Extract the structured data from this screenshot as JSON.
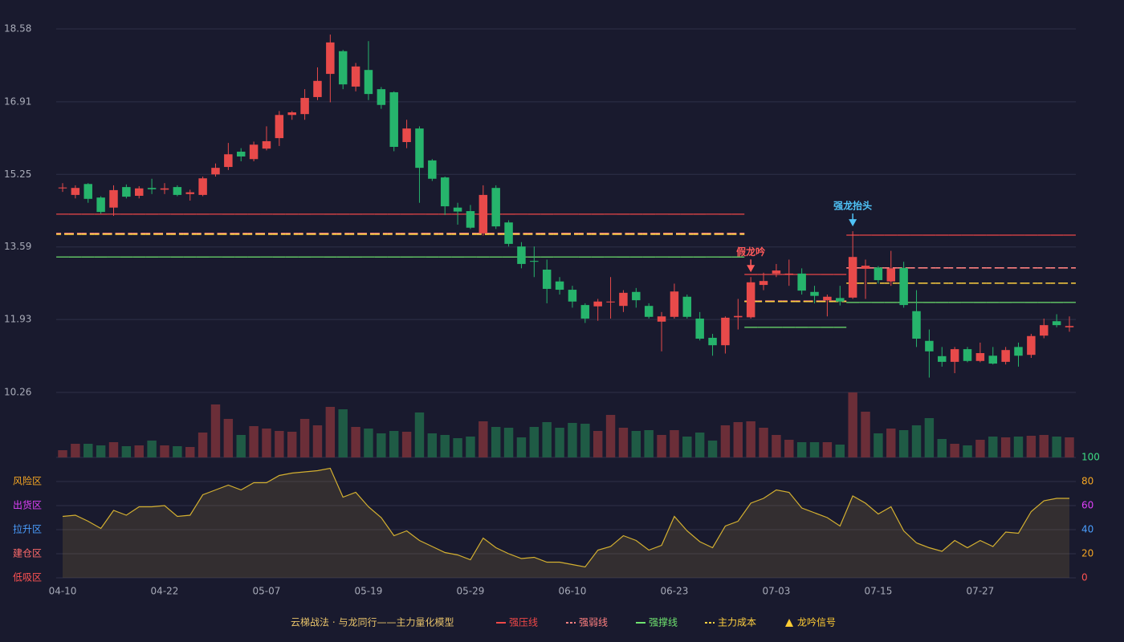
{
  "chart_data": {
    "type": "candlestick",
    "title": "云梯战法 · 与龙同行——主力量化模型",
    "categories": [
      "04-10",
      null,
      null,
      null,
      null,
      null,
      null,
      null,
      "04-22",
      null,
      null,
      null,
      null,
      null,
      null,
      null,
      "05-07",
      null,
      null,
      null,
      null,
      null,
      null,
      null,
      "05-19",
      null,
      null,
      null,
      null,
      null,
      null,
      null,
      "05-29",
      null,
      null,
      null,
      null,
      null,
      null,
      null,
      "06-10",
      null,
      null,
      null,
      null,
      null,
      null,
      null,
      "06-23",
      null,
      null,
      null,
      null,
      null,
      null,
      null,
      "07-03",
      null,
      null,
      null,
      null,
      null,
      null,
      null,
      "07-15",
      null,
      null,
      null,
      null,
      null,
      null,
      null,
      "07-27",
      null,
      null,
      null,
      null,
      null,
      null,
      null
    ],
    "open": [
      14.93,
      14.78,
      15.03,
      14.72,
      14.49,
      14.96,
      14.76,
      14.94,
      14.9,
      14.96,
      14.8,
      14.78,
      15.25,
      15.42,
      15.77,
      15.6,
      15.84,
      16.08,
      16.61,
      16.63,
      17.02,
      17.55,
      18.07,
      17.26,
      17.64,
      17.2,
      17.13,
      15.99,
      16.3,
      15.57,
      15.18,
      14.49,
      14.41,
      13.9,
      14.94,
      14.15,
      13.6,
      13.27,
      13.07,
      12.8,
      12.61,
      12.26,
      12.23,
      12.32,
      12.24,
      12.56,
      12.24,
      11.88,
      11.99,
      12.45,
      11.95,
      11.51,
      11.34,
      11.98,
      11.98,
      12.72,
      12.98,
      12.96,
      12.98,
      12.56,
      12.37,
      12.42,
      12.43,
      13.09,
      13.12,
      12.8,
      13.11,
      12.12,
      11.44,
      11.09,
      10.96,
      11.25,
      10.98,
      11.1,
      10.96,
      11.3,
      11.12,
      11.56,
      11.89,
      11.75
    ],
    "high": [
      15.05,
      15.0,
      15.05,
      14.75,
      15.0,
      15.02,
      14.98,
      15.15,
      15.05,
      15.0,
      14.9,
      15.2,
      15.5,
      15.97,
      15.85,
      16.0,
      16.35,
      16.7,
      16.7,
      17.2,
      17.7,
      18.45,
      18.1,
      17.8,
      18.3,
      17.25,
      17.15,
      16.5,
      16.35,
      15.6,
      15.2,
      14.6,
      14.55,
      15.0,
      15.0,
      14.2,
      13.7,
      13.6,
      13.3,
      12.9,
      12.7,
      12.3,
      12.4,
      12.9,
      12.6,
      12.65,
      12.3,
      12.1,
      12.75,
      12.5,
      12.1,
      11.6,
      12.0,
      12.4,
      12.9,
      13.0,
      13.2,
      13.3,
      13.1,
      12.7,
      12.5,
      12.7,
      13.95,
      13.3,
      13.15,
      13.5,
      13.25,
      12.6,
      11.7,
      11.3,
      11.3,
      11.3,
      11.4,
      11.3,
      11.3,
      11.4,
      11.6,
      11.95,
      12.05,
      12.0
    ],
    "low": [
      14.85,
      14.7,
      14.6,
      14.35,
      14.3,
      14.7,
      14.7,
      14.8,
      14.8,
      14.75,
      14.65,
      14.75,
      15.2,
      15.35,
      15.55,
      15.55,
      15.8,
      15.9,
      16.5,
      16.5,
      16.95,
      16.9,
      17.2,
      17.15,
      16.95,
      16.75,
      15.78,
      15.85,
      14.6,
      15.1,
      14.32,
      14.1,
      14.0,
      13.85,
      14.0,
      13.6,
      13.1,
      12.9,
      12.3,
      12.5,
      12.2,
      11.85,
      11.9,
      11.95,
      12.1,
      12.2,
      11.95,
      11.2,
      11.95,
      11.95,
      11.45,
      11.1,
      11.15,
      11.7,
      11.95,
      12.6,
      12.9,
      12.7,
      12.5,
      12.3,
      12.0,
      12.25,
      12.4,
      12.4,
      12.75,
      12.7,
      12.2,
      11.3,
      10.6,
      10.85,
      10.7,
      10.95,
      10.95,
      10.9,
      10.9,
      10.85,
      11.05,
      11.5,
      11.75,
      11.65
    ],
    "close": [
      14.95,
      14.94,
      14.69,
      14.39,
      14.89,
      14.74,
      14.93,
      14.91,
      14.93,
      14.78,
      14.84,
      15.16,
      15.4,
      15.71,
      15.66,
      15.93,
      16.01,
      16.61,
      16.67,
      17.0,
      17.39,
      18.27,
      17.31,
      17.72,
      17.09,
      16.84,
      15.88,
      16.3,
      15.4,
      15.15,
      14.52,
      14.4,
      14.03,
      14.78,
      14.06,
      13.66,
      13.2,
      13.25,
      12.63,
      12.61,
      12.34,
      11.95,
      12.34,
      12.34,
      12.54,
      12.37,
      11.99,
      12.0,
      12.57,
      11.99,
      11.49,
      11.34,
      11.97,
      12.01,
      12.78,
      12.81,
      13.05,
      12.98,
      12.59,
      12.47,
      12.45,
      12.34,
      13.36,
      13.16,
      12.83,
      13.1,
      12.26,
      11.49,
      11.2,
      10.96,
      11.25,
      10.98,
      11.16,
      10.92,
      11.23,
      11.1,
      11.55,
      11.8,
      11.8,
      11.78
    ],
    "up_color": "#e84a4a",
    "down_color": "#26b46c",
    "ylim": [
      10.26,
      18.58
    ],
    "yticks": [
      10.26,
      11.93,
      13.59,
      15.25,
      16.91,
      18.58
    ],
    "grid": true,
    "levels": [
      {
        "name": "强压线",
        "color": "#f04848",
        "dashed": false,
        "values": [
          14.34,
          14.34,
          14.34,
          14.34,
          14.34,
          14.34,
          14.34,
          14.34,
          14.34,
          14.34,
          14.34,
          14.34,
          14.34,
          14.34,
          14.34,
          14.34,
          14.34,
          14.34,
          14.34,
          14.34,
          14.34,
          14.34,
          14.34,
          14.34,
          14.34,
          14.34,
          14.34,
          14.34,
          14.34,
          14.34,
          14.34,
          14.34,
          14.34,
          14.34,
          14.34,
          14.34,
          14.34,
          14.34,
          14.34,
          14.34,
          14.34,
          14.34,
          14.34,
          14.34,
          14.34,
          14.34,
          14.34,
          14.34,
          14.34,
          14.34,
          14.34,
          14.34,
          14.34,
          14.34,
          12.96,
          12.96,
          12.96,
          12.96,
          12.96,
          12.96,
          12.96,
          12.96,
          13.86,
          13.86,
          13.86,
          13.86,
          13.86,
          13.86,
          13.86,
          13.86,
          13.86,
          13.86,
          13.86,
          13.86,
          13.86,
          13.86,
          13.86,
          13.86,
          13.86,
          13.86
        ]
      },
      {
        "name": "强弱线",
        "color": "#ff8080",
        "dashed": true,
        "values": [
          13.9,
          13.9,
          13.9,
          13.9,
          13.9,
          13.9,
          13.9,
          13.9,
          13.9,
          13.9,
          13.9,
          13.9,
          13.9,
          13.9,
          13.9,
          13.9,
          13.9,
          13.9,
          13.9,
          13.9,
          13.9,
          13.9,
          13.9,
          13.9,
          13.9,
          13.9,
          13.9,
          13.9,
          13.9,
          13.9,
          13.9,
          13.9,
          13.9,
          13.9,
          13.9,
          13.9,
          13.9,
          13.9,
          13.9,
          13.9,
          13.9,
          13.9,
          13.9,
          13.9,
          13.9,
          13.9,
          13.9,
          13.9,
          13.9,
          13.9,
          13.9,
          13.9,
          13.9,
          13.9,
          12.35,
          12.35,
          12.35,
          12.35,
          12.35,
          12.35,
          12.35,
          12.35,
          13.11,
          13.11,
          13.11,
          13.11,
          13.11,
          13.11,
          13.11,
          13.11,
          13.11,
          13.11,
          13.11,
          13.11,
          13.11,
          13.11,
          13.11,
          13.11,
          13.11,
          13.11
        ]
      },
      {
        "name": "强撑线",
        "color": "#6fe36f",
        "dashed": false,
        "values": [
          13.36,
          13.36,
          13.36,
          13.36,
          13.36,
          13.36,
          13.36,
          13.36,
          13.36,
          13.36,
          13.36,
          13.36,
          13.36,
          13.36,
          13.36,
          13.36,
          13.36,
          13.36,
          13.36,
          13.36,
          13.36,
          13.36,
          13.36,
          13.36,
          13.36,
          13.36,
          13.36,
          13.36,
          13.36,
          13.36,
          13.36,
          13.36,
          13.36,
          13.36,
          13.36,
          13.36,
          13.36,
          13.36,
          13.36,
          13.36,
          13.36,
          13.36,
          13.36,
          13.36,
          13.36,
          13.36,
          13.36,
          13.36,
          13.36,
          13.36,
          13.36,
          13.36,
          13.36,
          13.36,
          11.75,
          11.75,
          11.75,
          11.75,
          11.75,
          11.75,
          11.75,
          11.75,
          12.32,
          12.32,
          12.32,
          12.32,
          12.32,
          12.32,
          12.32,
          12.32,
          12.32,
          12.32,
          12.32,
          12.32,
          12.32,
          12.32,
          12.32,
          12.32,
          12.32,
          12.32
        ]
      },
      {
        "name": "主力成本",
        "color": "#ffd040",
        "dashed": true,
        "values": [
          13.88,
          13.88,
          13.88,
          13.88,
          13.88,
          13.88,
          13.88,
          13.88,
          13.88,
          13.88,
          13.88,
          13.88,
          13.88,
          13.88,
          13.88,
          13.88,
          13.88,
          13.88,
          13.88,
          13.88,
          13.88,
          13.88,
          13.88,
          13.88,
          13.88,
          13.88,
          13.88,
          13.88,
          13.88,
          13.88,
          13.88,
          13.88,
          13.88,
          13.88,
          13.88,
          13.88,
          13.88,
          13.88,
          13.88,
          13.88,
          13.88,
          13.88,
          13.88,
          13.88,
          13.88,
          13.88,
          13.88,
          13.88,
          13.88,
          13.88,
          13.88,
          13.88,
          13.88,
          13.88,
          12.34,
          12.34,
          12.34,
          12.34,
          12.34,
          12.34,
          12.34,
          12.34,
          12.76,
          12.76,
          12.76,
          12.76,
          12.76,
          12.76,
          12.76,
          12.76,
          12.76,
          12.76,
          12.76,
          12.76,
          12.76,
          12.76,
          12.76,
          12.76,
          12.76,
          12.76
        ]
      }
    ],
    "signals": [
      {
        "label": "假龙吟",
        "at": 54,
        "color": "#ff5a5a"
      },
      {
        "label": "强龙抬头",
        "at": 62,
        "color": "#4fc3f7"
      }
    ],
    "signal_legend": {
      "name": "龙吟信号",
      "color": "#ffcc33"
    },
    "volume": {
      "values": [
        9,
        17,
        17,
        15,
        19,
        14,
        15,
        21,
        15,
        14,
        13,
        31,
        66,
        48,
        28,
        39,
        36,
        33,
        32,
        48,
        40,
        63,
        60,
        38,
        36,
        30,
        33,
        32,
        56,
        30,
        28,
        24,
        26,
        45,
        38,
        37,
        25,
        38,
        44,
        37,
        43,
        42,
        33,
        53,
        37,
        33,
        34,
        28,
        34,
        26,
        31,
        21,
        40,
        44,
        45,
        37,
        28,
        22,
        19,
        19,
        19,
        16,
        81,
        57,
        30,
        36,
        34,
        40,
        49,
        23,
        17,
        15,
        22,
        26,
        25,
        26,
        27,
        28,
        26,
        25
      ],
      "up_color": "#6b2e38",
      "down_color": "#1f5b45"
    },
    "oscillator": {
      "type": "area",
      "color": "#d4b030",
      "values": [
        51,
        52,
        47,
        41,
        56,
        52,
        59,
        59,
        60,
        51,
        52,
        69,
        73,
        77,
        73,
        79,
        79,
        85,
        87,
        88,
        89,
        91,
        67,
        71,
        59,
        50,
        35,
        39,
        31,
        26,
        21,
        19,
        15,
        33,
        25,
        20,
        16,
        17,
        13,
        13,
        11,
        9,
        23,
        26,
        35,
        31,
        23,
        27,
        51,
        39,
        30,
        25,
        43,
        47,
        62,
        66,
        73,
        71,
        58,
        54,
        50,
        43,
        68,
        62,
        53,
        59,
        39,
        29,
        25,
        22,
        31,
        25,
        31,
        26,
        38,
        37,
        55,
        64,
        66,
        66
      ],
      "ylim": [
        0,
        100
      ],
      "yticks": [
        0,
        20,
        40,
        60,
        80,
        100
      ],
      "ytick_colors": [
        "#ff5252",
        "#f5a623",
        "#4a9eff",
        "#e040fb",
        "#f5a623",
        "#3ddc84"
      ],
      "zones": [
        {
          "value": 80,
          "label": "风险区",
          "color": "#f5a623"
        },
        {
          "value": 60,
          "label": "出货区",
          "color": "#e040fb"
        },
        {
          "value": 40,
          "label": "拉升区",
          "color": "#4a9eff"
        },
        {
          "value": 20,
          "label": "建仓区",
          "color": "#ff6b6b"
        },
        {
          "value": 0,
          "label": "低吸区",
          "color": "#ff5252"
        }
      ]
    }
  }
}
